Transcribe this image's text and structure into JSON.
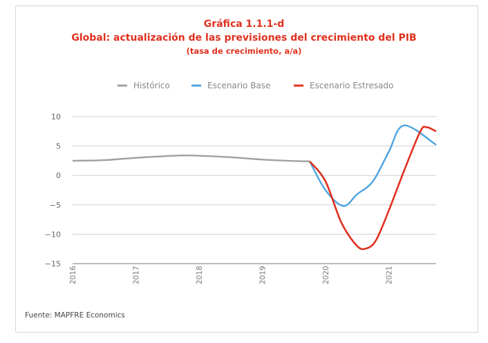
{
  "title": "Gráfica 1.1.1-d",
  "subtitle": "Global: actualización de las previsiones del crecimiento del PIB",
  "subsubtitle": "(tasa de crecimiento, a/a)",
  "source": "Fuente: MAPFRE Economics",
  "chart_data": {
    "type": "line",
    "title": "Gráfica 1.1.1-d",
    "ylim": [
      -15,
      10
    ],
    "yticks": [
      10,
      5,
      0,
      -5,
      -10,
      -15
    ],
    "xlim": [
      2016,
      2021.75
    ],
    "xticks": [
      2016,
      2017,
      2018,
      2019,
      2020,
      2021
    ],
    "grid": true,
    "legend": "top",
    "series": [
      {
        "name": "Histórico",
        "color": "#a0a0a0",
        "points": [
          [
            2016,
            2.5
          ],
          [
            2016.5,
            2.6
          ],
          [
            2017,
            3.0
          ],
          [
            2017.5,
            3.3
          ],
          [
            2017.75,
            3.4
          ],
          [
            2018,
            3.35
          ],
          [
            2018.5,
            3.1
          ],
          [
            2019,
            2.7
          ],
          [
            2019.5,
            2.45
          ],
          [
            2019.75,
            2.4
          ]
        ]
      },
      {
        "name": "Escenario Base",
        "color": "#4ba3e0",
        "points": [
          [
            2019.75,
            2.4
          ],
          [
            2020,
            -2.5
          ],
          [
            2020.28,
            -5.2
          ],
          [
            2020.5,
            -3.2
          ],
          [
            2020.75,
            -1.0
          ],
          [
            2021,
            4.0
          ],
          [
            2021.24,
            8.5
          ],
          [
            2021.75,
            5.2
          ]
        ]
      },
      {
        "name": "Escenario Estresado",
        "color": "#e0301e",
        "points": [
          [
            2019.75,
            2.4
          ],
          [
            2020,
            -1.0
          ],
          [
            2020.25,
            -8.0
          ],
          [
            2020.5,
            -12.0
          ],
          [
            2020.65,
            -12.4
          ],
          [
            2020.8,
            -11.0
          ],
          [
            2021,
            -6.0
          ],
          [
            2021.25,
            1.0
          ],
          [
            2021.5,
            7.5
          ],
          [
            2021.6,
            8.2
          ],
          [
            2021.75,
            7.5
          ]
        ]
      }
    ]
  }
}
